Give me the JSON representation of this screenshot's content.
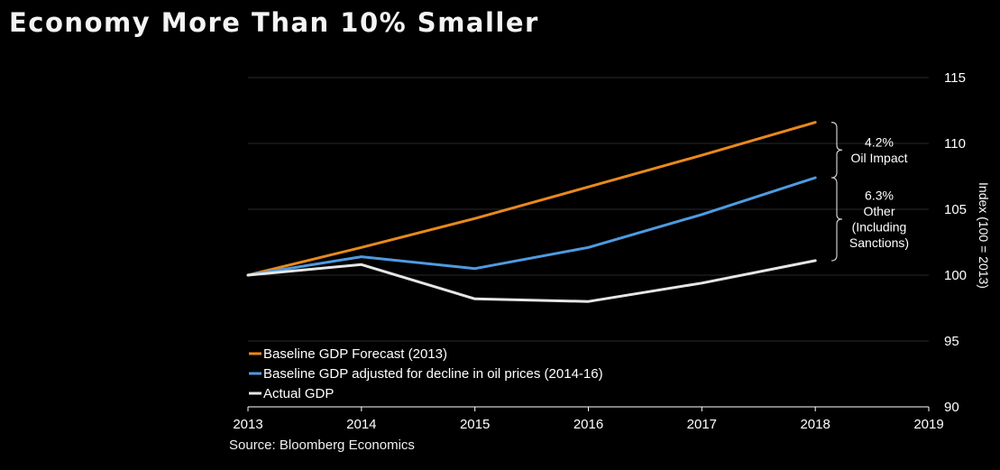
{
  "title": "Economy More Than 10% Smaller",
  "source": "Source: Bloomberg Economics",
  "chart_data": {
    "type": "line",
    "title": "Economy More Than 10% Smaller",
    "xlabel": "",
    "ylabel": "Index (100 = 2013)",
    "x": [
      2013,
      2014,
      2015,
      2016,
      2017,
      2018
    ],
    "xlim": [
      2013,
      2019
    ],
    "ylim": [
      90,
      115
    ],
    "x_ticks": [
      "2013",
      "2014",
      "2015",
      "2016",
      "2017",
      "2018",
      "2019"
    ],
    "y_ticks": [
      "90",
      "95",
      "100",
      "105",
      "110",
      "115"
    ],
    "grid": "horizontal",
    "y_axis_side": "right",
    "legend_position": "bottom-left",
    "series": [
      {
        "name": "Baseline GDP Forecast (2013)",
        "color": "#e8891e",
        "values": [
          100,
          102.1,
          104.3,
          106.7,
          109.1,
          111.6
        ]
      },
      {
        "name": "Baseline GDP adjusted for decline in oil prices (2014-16)",
        "color": "#4f9be0",
        "values": [
          100,
          101.4,
          100.5,
          102.1,
          104.6,
          107.4
        ]
      },
      {
        "name": "Actual GDP",
        "color": "#e6e6e6",
        "values": [
          100,
          100.8,
          98.2,
          98.0,
          99.4,
          101.1
        ]
      }
    ],
    "annotations": [
      {
        "lines": [
          "4.2%",
          "Oil Impact"
        ]
      },
      {
        "lines": [
          "6.3%",
          "Other",
          "(Including",
          "Sanctions)"
        ]
      }
    ]
  }
}
